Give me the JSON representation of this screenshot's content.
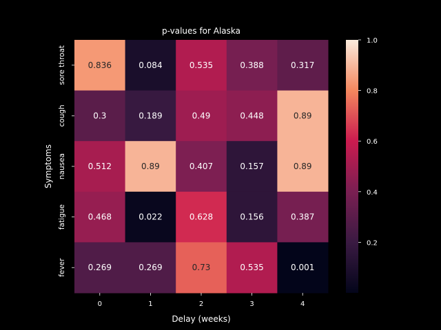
{
  "chart_data": {
    "type": "heatmap",
    "title": "p-values for Alaska",
    "xlabel": "Delay (weeks)",
    "ylabel": "Symptoms",
    "x": [
      "0",
      "1",
      "2",
      "3",
      "4"
    ],
    "y": [
      "sore throat",
      "cough",
      "nausea",
      "fatigue",
      "fever"
    ],
    "values": [
      [
        0.836,
        0.084,
        0.535,
        0.388,
        0.317
      ],
      [
        0.3,
        0.189,
        0.49,
        0.448,
        0.89
      ],
      [
        0.512,
        0.89,
        0.407,
        0.157,
        0.89
      ],
      [
        0.468,
        0.022,
        0.628,
        0.156,
        0.387
      ],
      [
        0.269,
        0.269,
        0.73,
        0.535,
        0.001
      ]
    ],
    "colorbar": {
      "range": [
        0.0,
        1.0
      ],
      "ticks": [
        "0.2",
        "0.4",
        "0.6",
        "0.8",
        "1.0"
      ],
      "colormap": "rocket"
    },
    "grid": false,
    "legend": "colorbar-right"
  }
}
